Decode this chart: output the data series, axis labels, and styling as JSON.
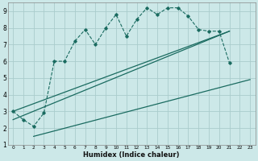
{
  "title": "",
  "xlabel": "Humidex (Indice chaleur)",
  "bg_color": "#cce8e8",
  "line_color": "#1a6b60",
  "grid_color": "#aacccc",
  "xlim": [
    -0.5,
    23.5
  ],
  "ylim": [
    1,
    9.5
  ],
  "xticks": [
    0,
    1,
    2,
    3,
    4,
    5,
    6,
    7,
    8,
    9,
    10,
    11,
    12,
    13,
    14,
    15,
    16,
    17,
    18,
    19,
    20,
    21,
    22,
    23
  ],
  "yticks": [
    1,
    2,
    3,
    4,
    5,
    6,
    7,
    8,
    9
  ],
  "line1_x": [
    0,
    1,
    2,
    3,
    4,
    5,
    6,
    7,
    8,
    9,
    10,
    11,
    12,
    13,
    14,
    15,
    16,
    17,
    18,
    19,
    20,
    21
  ],
  "line1_y": [
    3.0,
    2.5,
    2.1,
    2.9,
    6.0,
    6.0,
    7.2,
    7.9,
    7.0,
    8.0,
    8.8,
    7.5,
    8.5,
    9.2,
    8.8,
    9.2,
    9.2,
    8.7,
    7.9,
    7.8,
    7.8,
    5.9
  ],
  "line2_x": [
    0,
    21
  ],
  "line2_y": [
    3.0,
    7.8
  ],
  "line3_x": [
    0,
    21
  ],
  "line3_y": [
    2.5,
    7.8
  ],
  "line4_x": [
    2,
    23
  ],
  "line4_y": [
    1.5,
    4.9
  ]
}
